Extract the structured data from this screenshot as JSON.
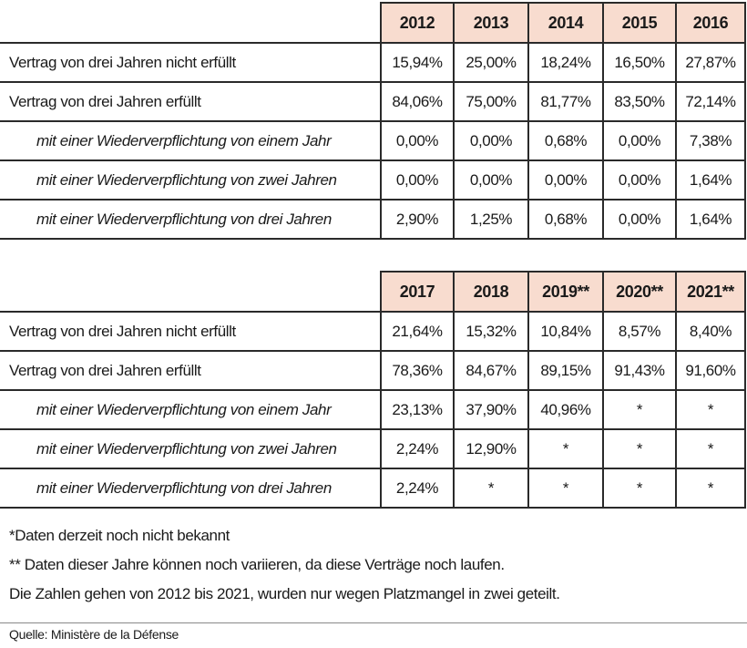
{
  "tables": [
    {
      "columns": [
        "2012",
        "2013",
        "2014",
        "2015",
        "2016"
      ],
      "rows": [
        {
          "label": "Vertrag von drei Jahren nicht erfüllt",
          "values": [
            "15,94%",
            "25,00%",
            "18,24%",
            "16,50%",
            "27,87%"
          ]
        },
        {
          "label": "Vertrag von drei Jahren erfüllt",
          "values": [
            "84,06%",
            "75,00%",
            "81,77%",
            "83,50%",
            "72,14%"
          ]
        },
        {
          "label": "mit einer Wiederverpflichtung von einem Jahr",
          "values": [
            "0,00%",
            "0,00%",
            "0,68%",
            "0,00%",
            "7,38%"
          ]
        },
        {
          "label": "mit einer Wiederverpflichtung von zwei Jahren",
          "values": [
            "0,00%",
            "0,00%",
            "0,00%",
            "0,00%",
            "1,64%"
          ]
        },
        {
          "label": "mit einer Wiederverpflichtung von drei Jahren",
          "values": [
            "2,90%",
            "1,25%",
            "0,68%",
            "0,00%",
            "1,64%"
          ]
        }
      ]
    },
    {
      "columns": [
        "2017",
        "2018",
        "2019**",
        "2020**",
        "2021**"
      ],
      "rows": [
        {
          "label": "Vertrag von drei Jahren nicht erfüllt",
          "values": [
            "21,64%",
            "15,32%",
            "10,84%",
            "8,57%",
            "8,40%"
          ]
        },
        {
          "label": "Vertrag von drei Jahren erfüllt",
          "values": [
            "78,36%",
            "84,67%",
            "89,15%",
            "91,43%",
            "91,60%"
          ]
        },
        {
          "label": "mit einer Wiederverpflichtung von einem Jahr",
          "values": [
            "23,13%",
            "37,90%",
            "40,96%",
            "*",
            "*"
          ]
        },
        {
          "label": "mit einer Wiederverpflichtung von zwei Jahren",
          "values": [
            "2,24%",
            "12,90%",
            "*",
            "*",
            "*"
          ]
        },
        {
          "label": "mit einer Wiederverpflichtung von drei Jahren",
          "values": [
            "2,24%",
            "*",
            "*",
            "*",
            "*"
          ]
        }
      ]
    }
  ],
  "notes": [
    "*Daten derzeit noch nicht bekannt",
    "** Daten dieser Jahre können noch variieren, da diese Verträge noch laufen.",
    "Die Zahlen gehen von 2012 bis 2021, wurden nur wegen Platzmangel in zwei geteilt."
  ],
  "source": "Quelle: Ministère de la Défense"
}
